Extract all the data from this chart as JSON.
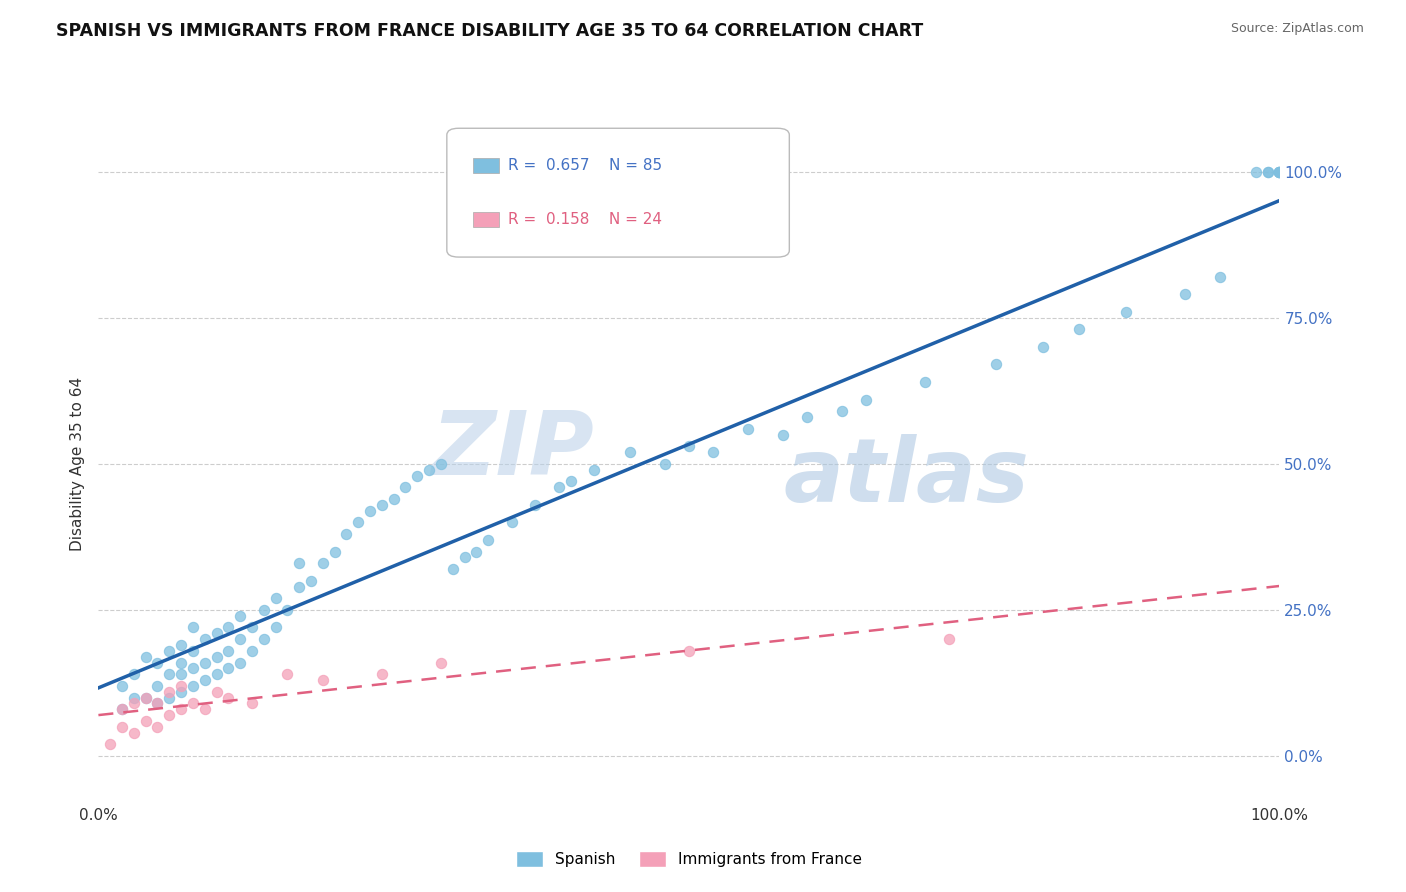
{
  "title": "SPANISH VS IMMIGRANTS FROM FRANCE DISABILITY AGE 35 TO 64 CORRELATION CHART",
  "source": "Source: ZipAtlas.com",
  "ylabel": "Disability Age 35 to 64",
  "legend_label_1": "Spanish",
  "legend_label_2": "Immigrants from France",
  "r1": 0.657,
  "n1": 85,
  "r2": 0.158,
  "n2": 24,
  "color1": "#7fbfdf",
  "color2": "#f4a0b8",
  "line_color1": "#2060a8",
  "line_color2": "#e06080",
  "watermark_zip": "ZIP",
  "watermark_atlas": "atlas",
  "xmin": 0.0,
  "xmax": 1.0,
  "ymin": -0.08,
  "ymax": 1.08,
  "yticks": [
    0.0,
    0.25,
    0.5,
    0.75,
    1.0
  ],
  "ytick_labels": [
    "0.0%",
    "25.0%",
    "50.0%",
    "75.0%",
    "100.0%"
  ],
  "xtick_labels": [
    "0.0%",
    "100.0%"
  ],
  "spanish_x": [
    0.02,
    0.02,
    0.03,
    0.03,
    0.04,
    0.04,
    0.05,
    0.05,
    0.05,
    0.06,
    0.06,
    0.06,
    0.07,
    0.07,
    0.07,
    0.07,
    0.08,
    0.08,
    0.08,
    0.08,
    0.09,
    0.09,
    0.09,
    0.1,
    0.1,
    0.1,
    0.11,
    0.11,
    0.11,
    0.12,
    0.12,
    0.12,
    0.13,
    0.13,
    0.14,
    0.14,
    0.15,
    0.15,
    0.16,
    0.17,
    0.17,
    0.18,
    0.19,
    0.2,
    0.21,
    0.22,
    0.23,
    0.24,
    0.25,
    0.26,
    0.27,
    0.28,
    0.29,
    0.3,
    0.31,
    0.32,
    0.33,
    0.35,
    0.37,
    0.39,
    0.42,
    0.45,
    0.5,
    0.55,
    0.6,
    0.65,
    0.7,
    0.76,
    0.8,
    0.83,
    0.87,
    0.92,
    0.95,
    0.98,
    0.99,
    0.99,
    1.0,
    1.0,
    1.0,
    1.0,
    0.4,
    0.48,
    0.52,
    0.58,
    0.63
  ],
  "spanish_y": [
    0.08,
    0.12,
    0.1,
    0.14,
    0.1,
    0.17,
    0.09,
    0.12,
    0.16,
    0.1,
    0.14,
    0.18,
    0.11,
    0.14,
    0.16,
    0.19,
    0.12,
    0.15,
    0.18,
    0.22,
    0.13,
    0.16,
    0.2,
    0.14,
    0.17,
    0.21,
    0.15,
    0.18,
    0.22,
    0.16,
    0.2,
    0.24,
    0.18,
    0.22,
    0.2,
    0.25,
    0.22,
    0.27,
    0.25,
    0.29,
    0.33,
    0.3,
    0.33,
    0.35,
    0.38,
    0.4,
    0.42,
    0.43,
    0.44,
    0.46,
    0.48,
    0.49,
    0.5,
    0.32,
    0.34,
    0.35,
    0.37,
    0.4,
    0.43,
    0.46,
    0.49,
    0.52,
    0.53,
    0.56,
    0.58,
    0.61,
    0.64,
    0.67,
    0.7,
    0.73,
    0.76,
    0.79,
    0.82,
    1.0,
    1.0,
    1.0,
    1.0,
    1.0,
    1.0,
    1.0,
    0.47,
    0.5,
    0.52,
    0.55,
    0.59
  ],
  "france_x": [
    0.01,
    0.02,
    0.02,
    0.03,
    0.03,
    0.04,
    0.04,
    0.05,
    0.05,
    0.06,
    0.06,
    0.07,
    0.07,
    0.08,
    0.09,
    0.1,
    0.11,
    0.13,
    0.16,
    0.19,
    0.24,
    0.29,
    0.5,
    0.72
  ],
  "france_y": [
    0.02,
    0.05,
    0.08,
    0.04,
    0.09,
    0.06,
    0.1,
    0.05,
    0.09,
    0.07,
    0.11,
    0.08,
    0.12,
    0.09,
    0.08,
    0.11,
    0.1,
    0.09,
    0.14,
    0.13,
    0.14,
    0.16,
    0.18,
    0.2
  ]
}
